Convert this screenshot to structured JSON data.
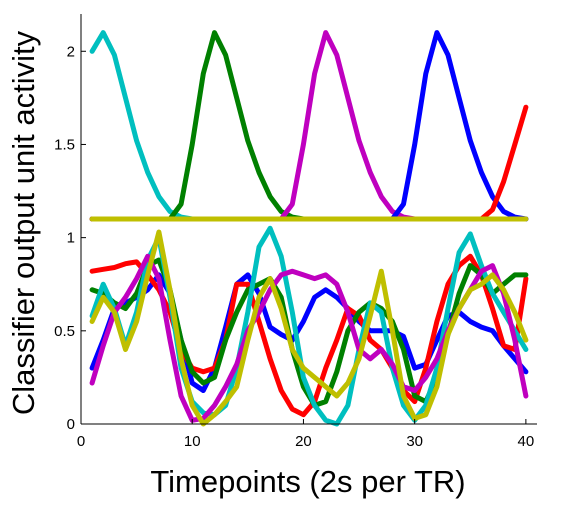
{
  "chart_data": {
    "type": "line",
    "title": "",
    "xlabel": "Timepoints (2s per TR)",
    "ylabel": "Classifier output unit activity",
    "xlim": [
      0,
      41
    ],
    "ylim": [
      0,
      2.2
    ],
    "xticks": [
      0,
      10,
      20,
      30,
      40
    ],
    "yticks": [
      0,
      0.5,
      1,
      1.5,
      2
    ],
    "xtick_labels": [
      "0",
      "10",
      "20",
      "30",
      "40"
    ],
    "ytick_labels": [
      "0",
      "0.5",
      "1",
      "1.5",
      "2"
    ],
    "grid": false,
    "legend": "none",
    "x": [
      1,
      2,
      3,
      4,
      5,
      6,
      7,
      8,
      9,
      10,
      11,
      12,
      13,
      14,
      15,
      16,
      17,
      18,
      19,
      20,
      21,
      22,
      23,
      24,
      25,
      26,
      27,
      28,
      29,
      30,
      31,
      32,
      33,
      34,
      35,
      36,
      37,
      38,
      39,
      40
    ],
    "series": [
      {
        "color": "#00bfbf",
        "group": "upper",
        "values": [
          2.0,
          2.1,
          1.98,
          1.75,
          1.52,
          1.35,
          1.22,
          1.14,
          1.11,
          1.1,
          1.1,
          1.1,
          1.1,
          1.1,
          1.1,
          1.1,
          1.1,
          1.1,
          1.1,
          1.1,
          1.1,
          1.1,
          1.1,
          1.1,
          1.1,
          1.1,
          1.1,
          1.1,
          1.1,
          1.1,
          1.1,
          1.1,
          1.1,
          1.1,
          1.1,
          1.1,
          1.1,
          1.1,
          1.1,
          1.1
        ]
      },
      {
        "color": "#008000",
        "group": "upper",
        "values": [
          1.1,
          1.1,
          1.1,
          1.1,
          1.1,
          1.1,
          1.1,
          1.1,
          1.18,
          1.5,
          1.88,
          2.1,
          1.98,
          1.75,
          1.52,
          1.35,
          1.22,
          1.14,
          1.11,
          1.1,
          1.1,
          1.1,
          1.1,
          1.1,
          1.1,
          1.1,
          1.1,
          1.1,
          1.1,
          1.1,
          1.1,
          1.1,
          1.1,
          1.1,
          1.1,
          1.1,
          1.1,
          1.1,
          1.1,
          1.1
        ]
      },
      {
        "color": "#bf00bf",
        "group": "upper",
        "values": [
          1.1,
          1.1,
          1.1,
          1.1,
          1.1,
          1.1,
          1.1,
          1.1,
          1.1,
          1.1,
          1.1,
          1.1,
          1.1,
          1.1,
          1.1,
          1.1,
          1.1,
          1.1,
          1.18,
          1.5,
          1.88,
          2.1,
          1.98,
          1.75,
          1.52,
          1.35,
          1.22,
          1.14,
          1.11,
          1.1,
          1.1,
          1.1,
          1.1,
          1.1,
          1.1,
          1.1,
          1.1,
          1.1,
          1.1,
          1.1
        ]
      },
      {
        "color": "#0000ff",
        "group": "upper",
        "values": [
          1.1,
          1.1,
          1.1,
          1.1,
          1.1,
          1.1,
          1.1,
          1.1,
          1.1,
          1.1,
          1.1,
          1.1,
          1.1,
          1.1,
          1.1,
          1.1,
          1.1,
          1.1,
          1.1,
          1.1,
          1.1,
          1.1,
          1.1,
          1.1,
          1.1,
          1.1,
          1.1,
          1.1,
          1.18,
          1.5,
          1.88,
          2.1,
          1.98,
          1.75,
          1.52,
          1.35,
          1.22,
          1.14,
          1.11,
          1.1
        ]
      },
      {
        "color": "#ff0000",
        "group": "upper",
        "values": [
          1.1,
          1.1,
          1.1,
          1.1,
          1.1,
          1.1,
          1.1,
          1.1,
          1.1,
          1.1,
          1.1,
          1.1,
          1.1,
          1.1,
          1.1,
          1.1,
          1.1,
          1.1,
          1.1,
          1.1,
          1.1,
          1.1,
          1.1,
          1.1,
          1.1,
          1.1,
          1.1,
          1.1,
          1.1,
          1.1,
          1.1,
          1.1,
          1.1,
          1.1,
          1.1,
          1.1,
          1.15,
          1.3,
          1.5,
          1.7
        ]
      },
      {
        "color": "#bfbf00",
        "group": "upper",
        "values": [
          1.1,
          1.1,
          1.1,
          1.1,
          1.1,
          1.1,
          1.1,
          1.1,
          1.1,
          1.1,
          1.1,
          1.1,
          1.1,
          1.1,
          1.1,
          1.1,
          1.1,
          1.1,
          1.1,
          1.1,
          1.1,
          1.1,
          1.1,
          1.1,
          1.1,
          1.1,
          1.1,
          1.1,
          1.1,
          1.1,
          1.1,
          1.1,
          1.1,
          1.1,
          1.1,
          1.1,
          1.1,
          1.1,
          1.1,
          1.1
        ]
      },
      {
        "color": "#0000ff",
        "group": "lower",
        "values": [
          0.3,
          0.45,
          0.62,
          0.65,
          0.68,
          0.72,
          0.8,
          0.7,
          0.45,
          0.22,
          0.18,
          0.3,
          0.52,
          0.75,
          0.8,
          0.7,
          0.52,
          0.48,
          0.45,
          0.55,
          0.68,
          0.72,
          0.68,
          0.62,
          0.55,
          0.5,
          0.5,
          0.5,
          0.47,
          0.3,
          0.32,
          0.45,
          0.58,
          0.6,
          0.55,
          0.52,
          0.5,
          0.42,
          0.35,
          0.28
        ]
      },
      {
        "color": "#ff0000",
        "group": "lower",
        "values": [
          0.82,
          0.83,
          0.84,
          0.86,
          0.87,
          0.8,
          0.72,
          0.6,
          0.4,
          0.3,
          0.28,
          0.3,
          0.45,
          0.75,
          0.75,
          0.55,
          0.35,
          0.18,
          0.08,
          0.05,
          0.12,
          0.3,
          0.45,
          0.62,
          0.58,
          0.45,
          0.4,
          0.3,
          0.18,
          0.12,
          0.3,
          0.55,
          0.75,
          0.85,
          0.9,
          0.8,
          0.62,
          0.42,
          0.4,
          0.78
        ]
      },
      {
        "color": "#008000",
        "group": "lower",
        "values": [
          0.72,
          0.7,
          0.65,
          0.62,
          0.7,
          0.85,
          0.88,
          0.72,
          0.45,
          0.28,
          0.22,
          0.25,
          0.45,
          0.6,
          0.72,
          0.75,
          0.78,
          0.68,
          0.4,
          0.2,
          0.1,
          0.12,
          0.28,
          0.5,
          0.6,
          0.65,
          0.62,
          0.55,
          0.4,
          0.15,
          0.12,
          0.25,
          0.48,
          0.7,
          0.85,
          0.8,
          0.7,
          0.75,
          0.8,
          0.8
        ]
      },
      {
        "color": "#00bfbf",
        "group": "lower",
        "values": [
          0.58,
          0.75,
          0.62,
          0.42,
          0.6,
          0.88,
          1.0,
          0.68,
          0.3,
          0.12,
          0.06,
          0.05,
          0.1,
          0.3,
          0.6,
          0.95,
          1.05,
          0.9,
          0.6,
          0.25,
          0.1,
          0.02,
          0.0,
          0.1,
          0.4,
          0.65,
          0.6,
          0.3,
          0.1,
          0.02,
          0.1,
          0.3,
          0.62,
          0.92,
          1.02,
          0.85,
          0.7,
          0.6,
          0.5,
          0.4
        ]
      },
      {
        "color": "#bf00bf",
        "group": "lower",
        "values": [
          0.22,
          0.42,
          0.6,
          0.68,
          0.78,
          0.9,
          0.78,
          0.45,
          0.15,
          0.02,
          0.03,
          0.1,
          0.2,
          0.32,
          0.5,
          0.6,
          0.72,
          0.8,
          0.82,
          0.8,
          0.78,
          0.8,
          0.75,
          0.6,
          0.4,
          0.35,
          0.4,
          0.32,
          0.2,
          0.18,
          0.25,
          0.35,
          0.5,
          0.62,
          0.72,
          0.82,
          0.85,
          0.7,
          0.45,
          0.15
        ]
      },
      {
        "color": "#bfbf00",
        "group": "lower",
        "values": [
          0.55,
          0.68,
          0.6,
          0.4,
          0.55,
          0.8,
          1.03,
          0.72,
          0.35,
          0.1,
          0.0,
          0.05,
          0.12,
          0.2,
          0.45,
          0.68,
          0.78,
          0.62,
          0.4,
          0.3,
          0.25,
          0.2,
          0.15,
          0.22,
          0.35,
          0.58,
          0.82,
          0.5,
          0.15,
          0.03,
          0.05,
          0.2,
          0.48,
          0.62,
          0.72,
          0.75,
          0.8,
          0.72,
          0.6,
          0.45
        ]
      }
    ]
  }
}
